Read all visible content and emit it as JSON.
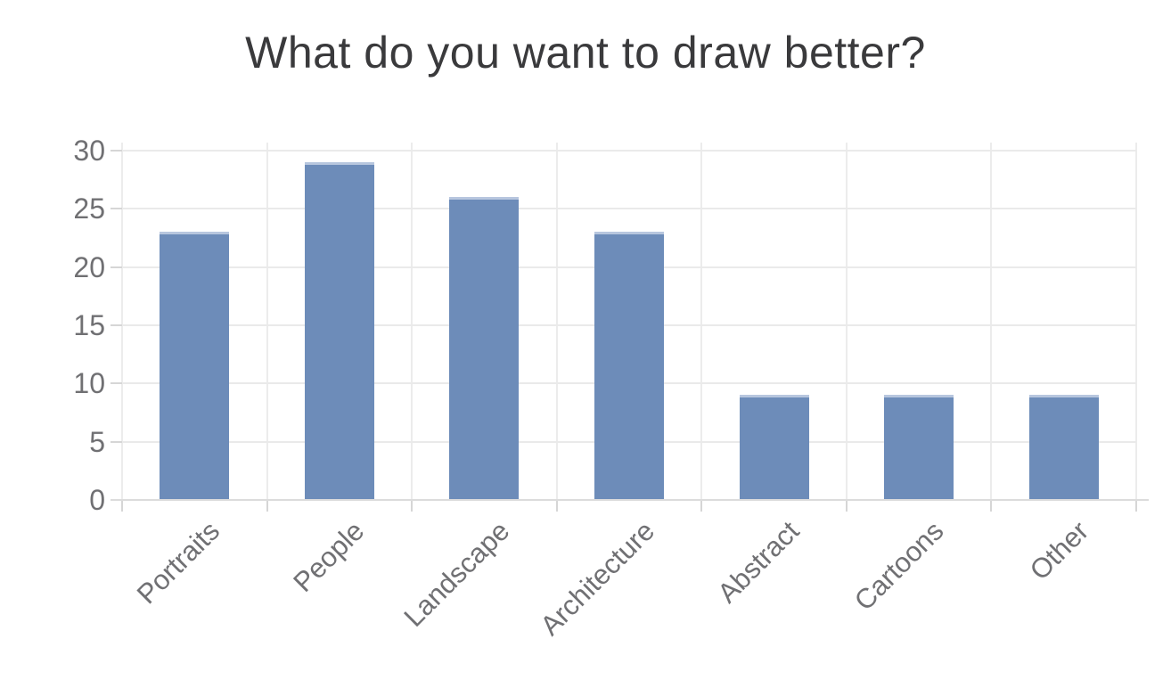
{
  "page": {
    "background_color": "#ffffff"
  },
  "chart_data": {
    "type": "bar",
    "title": "What do you want to draw better?",
    "categories": [
      "Portraits",
      "People",
      "Landscape",
      "Architecture",
      "Abstract",
      "Cartoons",
      "Other"
    ],
    "values": [
      23,
      29,
      26,
      23,
      9,
      9,
      9
    ],
    "xlabel": "",
    "ylabel": "",
    "ylim": [
      0,
      30
    ],
    "yticks": [
      0,
      5,
      10,
      15,
      20,
      25,
      30
    ],
    "grid": true,
    "legend": "none",
    "x_tick_rotation_deg": -45,
    "colors": {
      "bar_fill": "#6d8cb9",
      "bar_top_stroke": "#b7c6de",
      "gridline": "#eaeaea",
      "baseline": "#dcdcdc",
      "tick_mark": "#d6d6d6",
      "tick_text": "#707073",
      "title_text": "#3a3a3c"
    }
  }
}
